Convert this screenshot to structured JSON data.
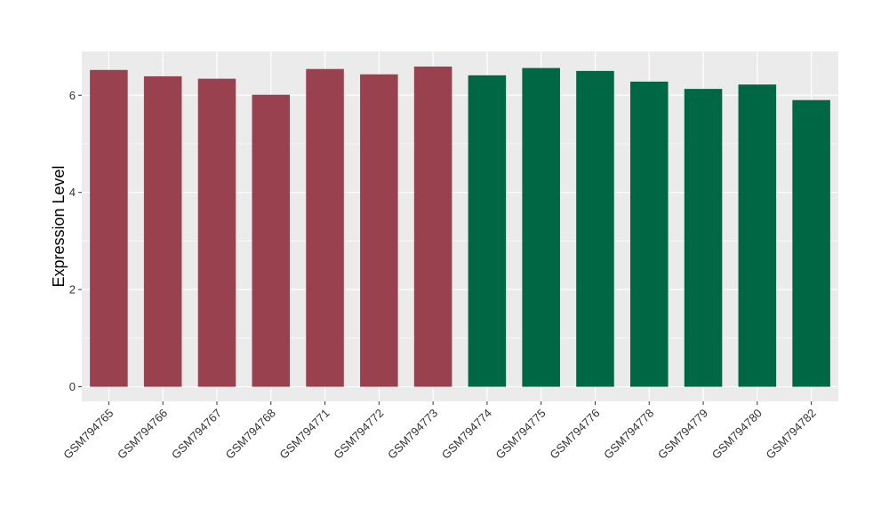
{
  "chart_data": {
    "type": "bar",
    "ylabel": "Expression Level",
    "xlabel": "",
    "title": "",
    "ylim": [
      -0.3,
      6.9
    ],
    "yticks": [
      0,
      2,
      4,
      6
    ],
    "ytick_labels": [
      "0",
      "2",
      "4",
      "6"
    ],
    "grid": true,
    "legend": "none",
    "categories": [
      "GSM794765",
      "GSM794766",
      "GSM794767",
      "GSM794768",
      "GSM794771",
      "GSM794772",
      "GSM794773",
      "GSM794774",
      "GSM794775",
      "GSM794776",
      "GSM794778",
      "GSM794779",
      "GSM794780",
      "GSM794782"
    ],
    "values": [
      6.52,
      6.39,
      6.34,
      6.01,
      6.54,
      6.43,
      6.59,
      6.41,
      6.56,
      6.5,
      6.28,
      6.13,
      6.22,
      5.9
    ],
    "group_colors": [
      "#99414f",
      "#99414f",
      "#99414f",
      "#99414f",
      "#99414f",
      "#99414f",
      "#99414f",
      "#006744",
      "#006744",
      "#006744",
      "#006744",
      "#006744",
      "#006744",
      "#006744"
    ],
    "panel_background": "#ebebeb",
    "grid_color": "#ffffff"
  }
}
